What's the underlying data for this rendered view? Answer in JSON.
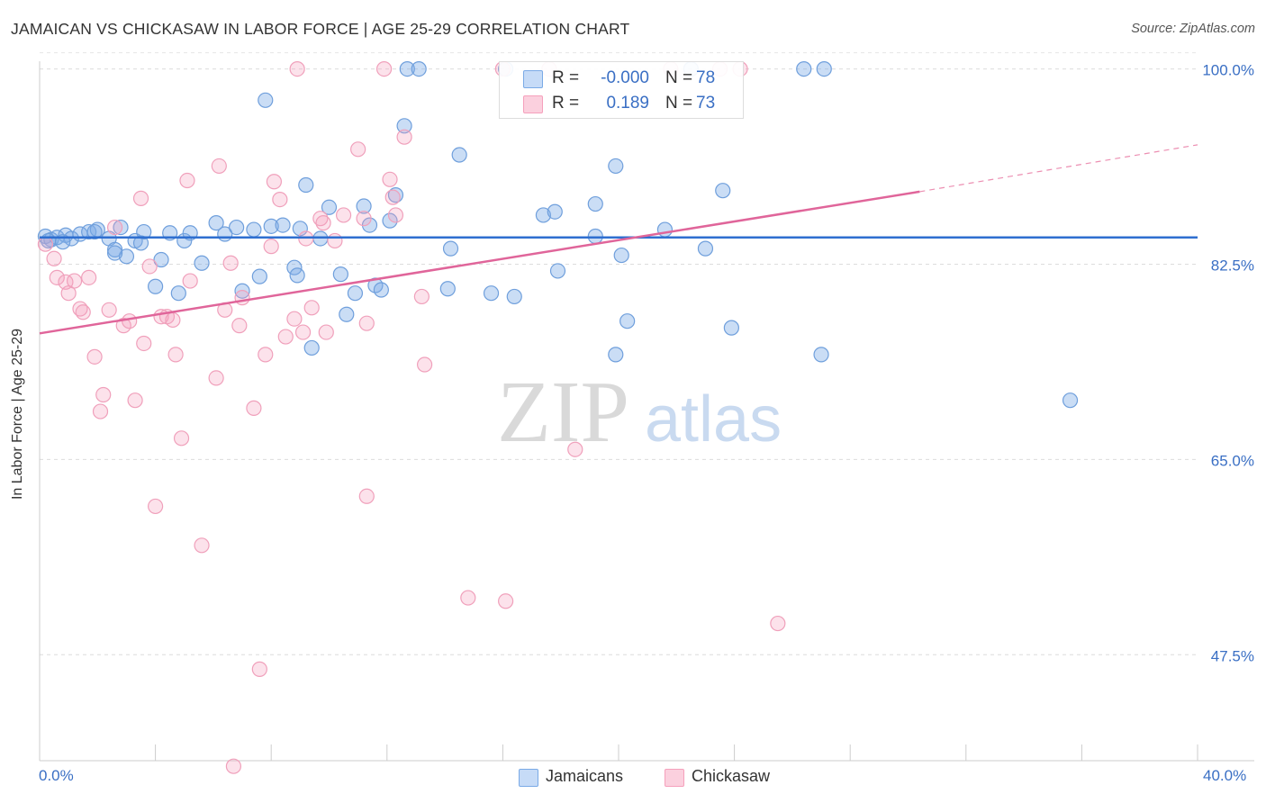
{
  "header": {
    "title": "JAMAICAN VS CHICKASAW IN LABOR FORCE | AGE 25-29 CORRELATION CHART",
    "source": "Source: ZipAtlas.com"
  },
  "watermark": {
    "zip": "ZIP",
    "atlas": "atlas"
  },
  "legend": {
    "rows": [
      {
        "r_label": "R =",
        "r_value": "-0.000",
        "n_label": "N =",
        "n_value": "78",
        "color": "#7aaae6"
      },
      {
        "r_label": "R =",
        "r_value": "0.189",
        "n_label": "N =",
        "n_value": "73",
        "color": "#f5a0bc"
      }
    ]
  },
  "bottom_legend": [
    {
      "label": "Jamaicans",
      "color": "#7aaae6"
    },
    {
      "label": "Chickasaw",
      "color": "#f5a0bc"
    }
  ],
  "chart_data": {
    "type": "scatter",
    "title": "JAMAICAN VS CHICKASAW IN LABOR FORCE | AGE 25-29 CORRELATION CHART",
    "xlabel": "",
    "ylabel": "In Labor Force | Age 25-29",
    "xlim": [
      0,
      40
    ],
    "ylim": [
      38,
      101.5
    ],
    "x_tick_labels": [
      "0.0%",
      "40.0%"
    ],
    "y_ticks": [
      47.5,
      65.0,
      82.5,
      100.0
    ],
    "y_tick_labels": [
      "47.5%",
      "65.0%",
      "82.5%",
      "100.0%"
    ],
    "grid": true,
    "legend_position": "top-center",
    "series": [
      {
        "name": "Jamaicans",
        "color": "#7aaae6",
        "trend": {
          "x": [
            0,
            40
          ],
          "y": [
            84.9,
            84.9
          ]
        },
        "points": [
          [
            0.2,
            85.0
          ],
          [
            0.4,
            84.7
          ],
          [
            0.6,
            84.9
          ],
          [
            0.9,
            85.1
          ],
          [
            1.1,
            84.8
          ],
          [
            1.4,
            85.2
          ],
          [
            1.7,
            85.4
          ],
          [
            2.0,
            85.6
          ],
          [
            2.4,
            84.8
          ],
          [
            2.6,
            83.8
          ],
          [
            2.8,
            85.8
          ],
          [
            3.0,
            83.2
          ],
          [
            3.3,
            84.6
          ],
          [
            3.5,
            84.4
          ],
          [
            3.6,
            85.4
          ],
          [
            4.0,
            80.5
          ],
          [
            4.2,
            82.9
          ],
          [
            4.5,
            85.3
          ],
          [
            4.8,
            79.9
          ],
          [
            5.0,
            84.6
          ],
          [
            5.2,
            85.3
          ],
          [
            5.6,
            82.6
          ],
          [
            6.1,
            86.2
          ],
          [
            6.4,
            85.2
          ],
          [
            6.8,
            85.8
          ],
          [
            7.0,
            80.1
          ],
          [
            7.4,
            85.6
          ],
          [
            7.6,
            81.4
          ],
          [
            7.8,
            97.2
          ],
          [
            8.0,
            85.9
          ],
          [
            8.4,
            86.0
          ],
          [
            8.8,
            82.2
          ],
          [
            8.9,
            81.5
          ],
          [
            9.0,
            85.7
          ],
          [
            9.4,
            75.0
          ],
          [
            9.7,
            84.8
          ],
          [
            9.2,
            89.6
          ],
          [
            10.0,
            87.6
          ],
          [
            10.4,
            81.6
          ],
          [
            10.6,
            78.0
          ],
          [
            10.9,
            79.9
          ],
          [
            11.2,
            87.7
          ],
          [
            11.4,
            86.0
          ],
          [
            11.6,
            80.6
          ],
          [
            11.8,
            80.2
          ],
          [
            12.1,
            86.4
          ],
          [
            12.3,
            88.7
          ],
          [
            12.6,
            94.9
          ],
          [
            12.7,
            100.0
          ],
          [
            13.1,
            100.0
          ],
          [
            14.1,
            80.3
          ],
          [
            14.5,
            92.3
          ],
          [
            14.2,
            83.9
          ],
          [
            15.6,
            79.9
          ],
          [
            16.1,
            100.0
          ],
          [
            16.4,
            79.6
          ],
          [
            17.4,
            86.9
          ],
          [
            17.8,
            87.2
          ],
          [
            17.9,
            81.9
          ],
          [
            19.2,
            87.9
          ],
          [
            19.2,
            85.0
          ],
          [
            19.9,
            91.3
          ],
          [
            19.9,
            74.4
          ],
          [
            20.1,
            83.3
          ],
          [
            20.3,
            77.4
          ],
          [
            21.6,
            85.6
          ],
          [
            22.5,
            100.0
          ],
          [
            23.0,
            83.9
          ],
          [
            23.6,
            89.1
          ],
          [
            23.9,
            76.8
          ],
          [
            26.4,
            100.0
          ],
          [
            27.1,
            100.0
          ],
          [
            27.0,
            74.4
          ],
          [
            35.6,
            70.3
          ],
          [
            0.3,
            84.6
          ],
          [
            0.8,
            84.5
          ],
          [
            1.9,
            85.4
          ],
          [
            2.6,
            83.5
          ]
        ]
      },
      {
        "name": "Chickasaw",
        "color": "#f5a0bc",
        "trend": {
          "x": [
            0,
            30.4
          ],
          "y": [
            76.3,
            89.0
          ]
        },
        "trend_dashed": {
          "x": [
            30.4,
            40
          ],
          "y": [
            89.0,
            93.2
          ]
        },
        "points": [
          [
            0.2,
            84.3
          ],
          [
            0.5,
            83.0
          ],
          [
            0.6,
            81.3
          ],
          [
            0.9,
            80.9
          ],
          [
            1.0,
            79.9
          ],
          [
            1.2,
            81.0
          ],
          [
            1.4,
            78.5
          ],
          [
            1.5,
            78.2
          ],
          [
            1.7,
            81.3
          ],
          [
            1.9,
            74.2
          ],
          [
            2.1,
            69.3
          ],
          [
            2.2,
            70.8
          ],
          [
            2.4,
            78.4
          ],
          [
            2.6,
            85.8
          ],
          [
            2.9,
            77.0
          ],
          [
            3.1,
            77.4
          ],
          [
            3.3,
            70.3
          ],
          [
            3.5,
            88.4
          ],
          [
            3.6,
            75.4
          ],
          [
            3.8,
            82.3
          ],
          [
            4.0,
            60.8
          ],
          [
            4.2,
            77.8
          ],
          [
            4.4,
            77.8
          ],
          [
            4.6,
            77.5
          ],
          [
            4.7,
            74.4
          ],
          [
            4.9,
            66.9
          ],
          [
            5.1,
            90.0
          ],
          [
            5.2,
            81.0
          ],
          [
            5.6,
            57.3
          ],
          [
            6.1,
            72.3
          ],
          [
            6.2,
            91.3
          ],
          [
            6.4,
            78.4
          ],
          [
            6.6,
            82.6
          ],
          [
            6.7,
            37.5
          ],
          [
            6.9,
            77.0
          ],
          [
            7.0,
            79.5
          ],
          [
            7.4,
            69.6
          ],
          [
            7.6,
            46.2
          ],
          [
            7.8,
            74.4
          ],
          [
            8.0,
            84.1
          ],
          [
            8.1,
            89.9
          ],
          [
            8.3,
            88.3
          ],
          [
            8.5,
            76.0
          ],
          [
            8.8,
            77.6
          ],
          [
            8.9,
            100.0
          ],
          [
            9.1,
            76.4
          ],
          [
            9.2,
            84.8
          ],
          [
            9.4,
            78.6
          ],
          [
            9.7,
            86.6
          ],
          [
            9.8,
            86.2
          ],
          [
            9.9,
            76.4
          ],
          [
            10.2,
            84.6
          ],
          [
            10.5,
            86.9
          ],
          [
            11.0,
            92.8
          ],
          [
            11.2,
            86.6
          ],
          [
            11.3,
            77.2
          ],
          [
            11.3,
            61.7
          ],
          [
            11.9,
            100.0
          ],
          [
            12.1,
            90.1
          ],
          [
            12.2,
            88.5
          ],
          [
            12.3,
            86.9
          ],
          [
            12.6,
            93.9
          ],
          [
            13.2,
            79.6
          ],
          [
            13.3,
            73.5
          ],
          [
            14.8,
            52.6
          ],
          [
            16.0,
            100.0
          ],
          [
            16.1,
            52.3
          ],
          [
            17.6,
            100.0
          ],
          [
            18.5,
            65.9
          ],
          [
            21.8,
            100.0
          ],
          [
            23.5,
            100.0
          ],
          [
            24.2,
            100.0
          ],
          [
            25.5,
            50.3
          ]
        ]
      }
    ]
  }
}
